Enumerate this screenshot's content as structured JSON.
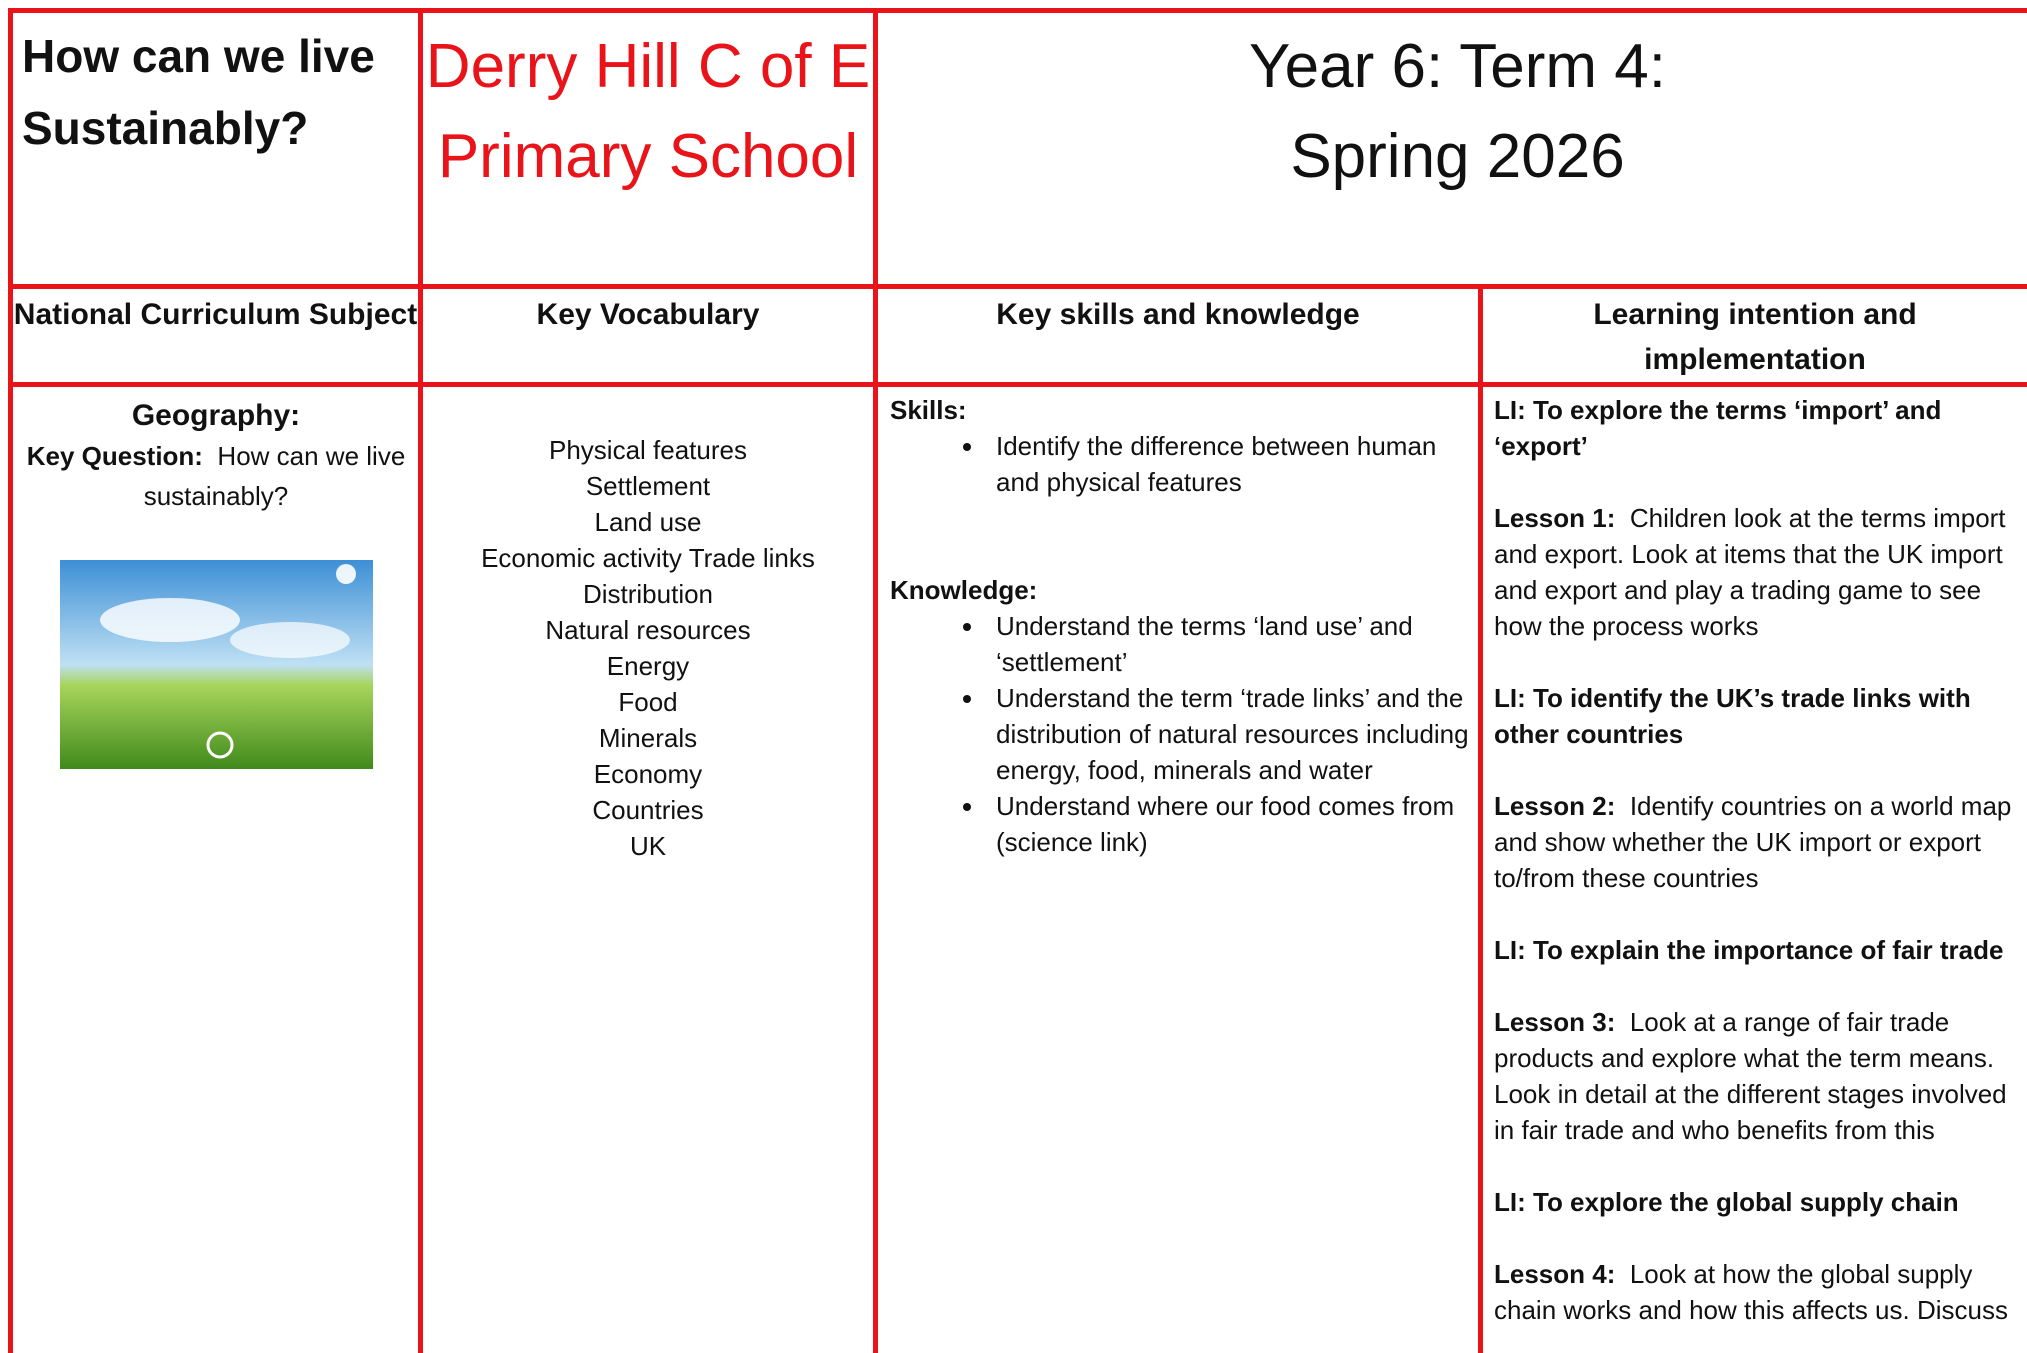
{
  "header": {
    "title": "How can we live Sustainably?",
    "school": "Derry Hill C of E Primary School",
    "term": [
      "Year 6: Term 4:",
      "Spring 2026"
    ]
  },
  "columns": [
    "National Curriculum Subject",
    "Key Vocabulary",
    "Key skills and knowledge",
    "Learning intention and implementation"
  ],
  "subject": {
    "name": "Geography:",
    "question_label": "Key Question:",
    "question": "How can we live sustainably?"
  },
  "vocabulary": [
    "Physical features",
    "Settlement",
    "Land use",
    "Economic activity Trade links",
    "Distribution",
    "Natural resources",
    "Energy",
    "Food",
    "Minerals",
    "Economy",
    "Countries",
    "UK"
  ],
  "skills": {
    "label": "Skills:",
    "items": [
      "Identify the difference between human and physical features"
    ]
  },
  "knowledge": {
    "label": "Knowledge:",
    "items": [
      "Understand the terms ‘land use’ and ‘settlement’",
      "Understand the term ‘trade links’ and the distribution of natural resources including energy, food, minerals and water",
      "Understand where our food comes from (science link)"
    ]
  },
  "learning": [
    {
      "heading": "LI:  To explore the terms ‘import’ and ‘export’",
      "label": "Lesson 1:",
      "text": "Children look at the terms import and export.  Look at items that the UK import and export and play a trading game to see how the process works"
    },
    {
      "heading": "LI:  To identify the UK’s trade links with other countries",
      "label": "Lesson 2:",
      "text": "Identify countries on a world map and show whether the UK import or export to/from these countries"
    },
    {
      "heading": "LI:  To explain the importance of fair trade",
      "label": "Lesson 3:",
      "text": "Look at a range of fair trade products and explore what the term means. Look in detail at the different stages involved in fair trade and who benefits from this"
    },
    {
      "heading": "LI: To explore the global supply chain",
      "label": "Lesson 4:",
      "text": "Look at how the global supply chain works and how this affects us.  Discuss"
    }
  ]
}
